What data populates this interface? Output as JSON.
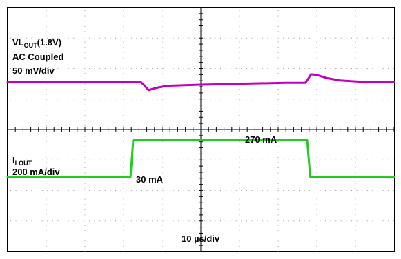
{
  "chart_data": {
    "type": "line",
    "grid": true,
    "grid_divisions": {
      "x": 10,
      "y": 8
    },
    "xlabel": "10 µs/div",
    "x_unit": "µs",
    "x_per_div": 10,
    "xlim": [
      0,
      100
    ],
    "channels": [
      {
        "label_lines": [
          "VL",
          "OUT",
          "(1.8V)"
        ],
        "label_line2": "AC Coupled",
        "scale_label": "50 mV/div",
        "color": "#c000c0",
        "unit": "mV",
        "per_div": 50,
        "offset_div": 5.55,
        "x": [
          0,
          34.5,
          35.2,
          36.5,
          38,
          41,
          45,
          50,
          57,
          64,
          72,
          77,
          77.6,
          78.5,
          80,
          82.5,
          86,
          91,
          96,
          100
        ],
        "values": [
          0,
          0,
          -4,
          -13,
          -10,
          -6,
          -5,
          -4,
          -3,
          -2,
          -1,
          -1,
          4,
          13,
          12,
          7,
          3,
          1,
          0,
          0
        ]
      },
      {
        "label_main": "I",
        "label_sub": "LOUT",
        "scale_label": "200 mA/div",
        "color": "#22cc22",
        "unit": "mA",
        "per_div": 200,
        "offset_div": 2.45,
        "x": [
          0,
          31.8,
          32.5,
          77.5,
          78.3,
          100
        ],
        "values": [
          30,
          30,
          270,
          270,
          30,
          30
        ],
        "annotations": [
          {
            "text": "270 mA",
            "x": 63.5,
            "y": 270
          },
          {
            "text": "30 mA",
            "x": 35,
            "y": 30
          }
        ]
      }
    ]
  }
}
